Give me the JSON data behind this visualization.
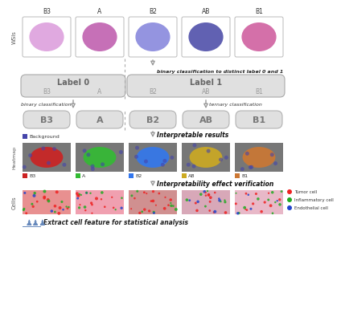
{
  "wsi_labels": [
    "B3",
    "A",
    "B2",
    "AB",
    "B1"
  ],
  "label0_text": "Label 0",
  "label1_text": "Label 1",
  "label0_sub": [
    "B3",
    "A"
  ],
  "label1_sub": [
    "B2",
    "AB",
    "B1"
  ],
  "binary_class_text": "binary classification",
  "ternary_class_text": "ternary classification",
  "binary_label_text": "binary classification to distinct label 0 and 1",
  "interpretable_text": "Interpretable results",
  "verification_text": "Interpretability effect verification",
  "extract_text": "Extract cell feature for statistical analysis",
  "individual_labels": [
    "B3",
    "A",
    "B2",
    "AB",
    "B1"
  ],
  "heatmap_colors": [
    "#cc2222",
    "#33bb33",
    "#3377ee",
    "#ccaa22",
    "#cc7733"
  ],
  "heatmap_label": "Background",
  "heatmap_bg_color": "#4444aa",
  "legend_items": [
    {
      "label": "Tumor cell",
      "color": "#ee2222"
    },
    {
      "label": "Inflammatory cell",
      "color": "#22aa22"
    },
    {
      "label": "Endothelial cell",
      "color": "#2244cc"
    }
  ],
  "section_label_wsi": "WSIs",
  "section_label_heatmap": "Heatmap",
  "section_label_cells": "Cells",
  "bg_color": "#ffffff",
  "box_color": "#e0e0e0",
  "box_edge": "#aaaaaa",
  "dashed_color": "#aaaaaa",
  "font_color": "#333333",
  "wsi_tissue_colors": [
    "#dda0dd",
    "#c060b0",
    "#8888dd",
    "#5050aa",
    "#d060a0"
  ],
  "heatmap_bg_gray": "#777777",
  "cell_bg_colors": [
    "#e89090",
    "#f0a0b0",
    "#d09090",
    "#d8a8b8",
    "#e8b8c8"
  ]
}
